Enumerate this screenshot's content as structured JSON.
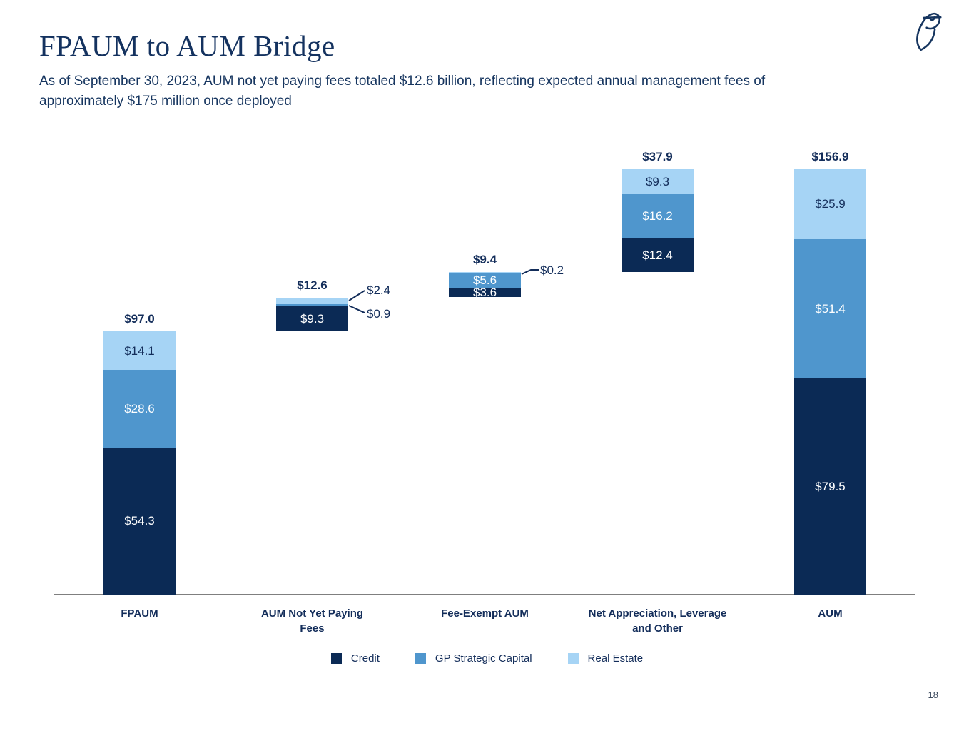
{
  "page": {
    "title": "FPAUM to AUM Bridge",
    "subtitle": "As of September 30, 2023, AUM not yet paying fees totaled $12.6 billion, reflecting expected annual management fees of\napproximately $175 million once deployed",
    "page_number": "18",
    "logo": "blue-owl-owl-logo"
  },
  "colors": {
    "navy": "#132d5a",
    "credit": "#0b2a55",
    "gp_strategic_capital": "#4f96cd",
    "real_estate": "#a6d4f5",
    "axis": "#7f7f7f",
    "inside_label_light": "#ffffff"
  },
  "legend": [
    {
      "label": "Credit",
      "color": "#0b2a55"
    },
    {
      "label": "GP Strategic Capital",
      "color": "#4f96cd"
    },
    {
      "label": "Real Estate",
      "color": "#a6d4f5"
    }
  ],
  "chart_data": {
    "type": "bar",
    "subtype": "stacked-waterfall-bridge",
    "title": "FPAUM to AUM Bridge",
    "unit": "USD billions",
    "xlabel": "",
    "ylabel": "",
    "grid": false,
    "legend_position": "bottom",
    "categories": [
      "FPAUM",
      "AUM Not Yet Paying\nFees",
      "Fee-Exempt AUM",
      "Net Appreciation, Leverage\nand Other",
      "AUM"
    ],
    "series": [
      {
        "name": "Credit",
        "color": "#0b2a55",
        "values": [
          54.3,
          9.3,
          3.6,
          12.4,
          79.5
        ]
      },
      {
        "name": "GP Strategic Capital",
        "color": "#4f96cd",
        "values": [
          28.6,
          0.9,
          5.6,
          16.2,
          51.4
        ]
      },
      {
        "name": "Real Estate",
        "color": "#a6d4f5",
        "values": [
          14.1,
          2.4,
          0.2,
          9.3,
          25.9
        ]
      }
    ],
    "totals": [
      97.0,
      12.6,
      9.4,
      37.9,
      156.9
    ],
    "total_labels": [
      "$97.0",
      "$12.6",
      "$9.4",
      "$37.9",
      "$156.9"
    ],
    "baselines": [
      0,
      97.0,
      109.6,
      119.0,
      0
    ],
    "callout_labels": [
      "$0.9",
      "$2.4",
      "$0.2"
    ]
  }
}
